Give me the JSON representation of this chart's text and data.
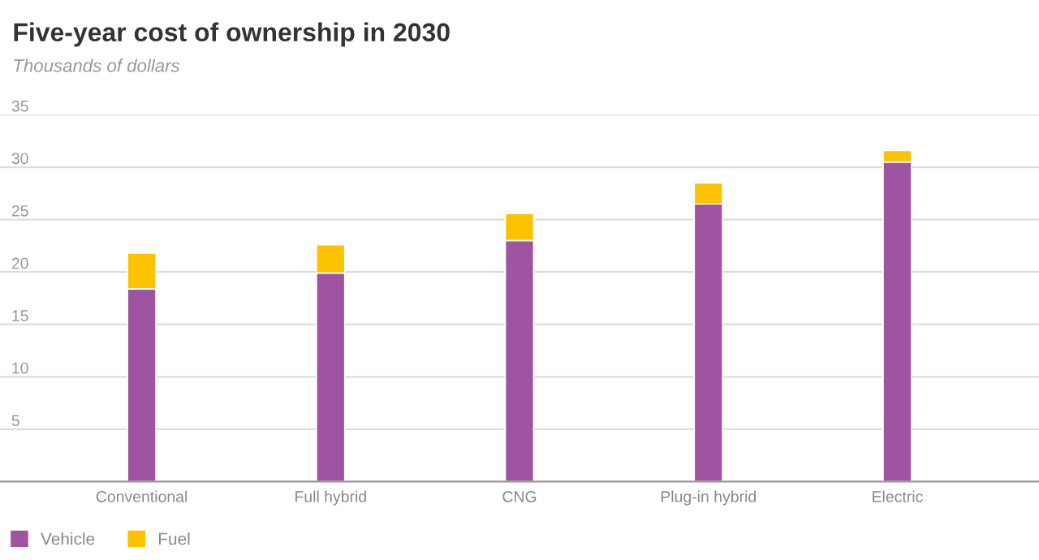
{
  "chart_data": {
    "type": "bar",
    "title": "Five-year cost of ownership in 2030",
    "subtitle": "Thousands of dollars",
    "categories": [
      "Conventional",
      "Full hybrid",
      "CNG",
      "Plug-in hybrid",
      "Electric"
    ],
    "stacked": true,
    "series": [
      {
        "name": "Vehicle",
        "color": "#9e54a0",
        "values": [
          18.4,
          19.9,
          23.0,
          26.5,
          30.5
        ]
      },
      {
        "name": "Fuel",
        "color": "#fcc200",
        "values": [
          3.4,
          2.7,
          2.6,
          2.0,
          1.1
        ]
      }
    ],
    "ylim": [
      0,
      35
    ],
    "yticks": [
      {
        "value": 0,
        "label": null
      },
      5,
      10,
      15,
      20,
      25,
      30,
      35
    ],
    "grid": "y",
    "legend": "bottom left"
  }
}
